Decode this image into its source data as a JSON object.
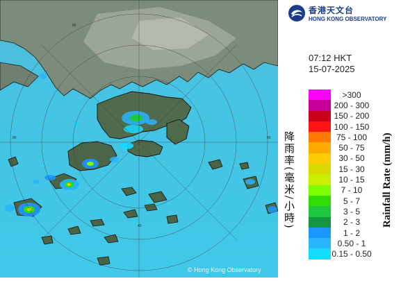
{
  "header": {
    "org_name_cn": "香港天文台",
    "org_name_en": "HONG KONG OBSERVATORY"
  },
  "timestamp": {
    "time": "07:12 HKT",
    "date": "15-07-2025"
  },
  "legend": {
    "title_cn": "降雨率(毫米/小時)",
    "title_en": "Rainfall Rate (mm/h)",
    "items": [
      {
        "label": ">300",
        "color": "#ff00ff"
      },
      {
        "label": "200 - 300",
        "color": "#c8009b"
      },
      {
        "label": "150 - 200",
        "color": "#c8001e"
      },
      {
        "label": "100 - 150",
        "color": "#ff1414"
      },
      {
        "label": "75 - 100",
        "color": "#ff7800"
      },
      {
        "label": "50 - 75",
        "color": "#ffaa00"
      },
      {
        "label": "30 - 50",
        "color": "#ffcc00"
      },
      {
        "label": "15 - 30",
        "color": "#d9d900"
      },
      {
        "label": "10 - 15",
        "color": "#c8f000"
      },
      {
        "label": "7 - 10",
        "color": "#7dff00"
      },
      {
        "label": "5 - 7",
        "color": "#32dc00"
      },
      {
        "label": "3 - 5",
        "color": "#1ec83c"
      },
      {
        "label": "2 - 3",
        "color": "#149641"
      },
      {
        "label": "1 - 2",
        "color": "#1e96ff"
      },
      {
        "label": "0.50 - 1",
        "color": "#28b4ff"
      },
      {
        "label": "0.15 - 0.50",
        "color": "#14dcff"
      }
    ]
  },
  "map": {
    "range_ring_labels": [
      "40",
      "60",
      "80"
    ],
    "copyright": "© Hong Kong Observatory",
    "sea_color": "#46c8e6",
    "land_color": "#7a8a78"
  }
}
